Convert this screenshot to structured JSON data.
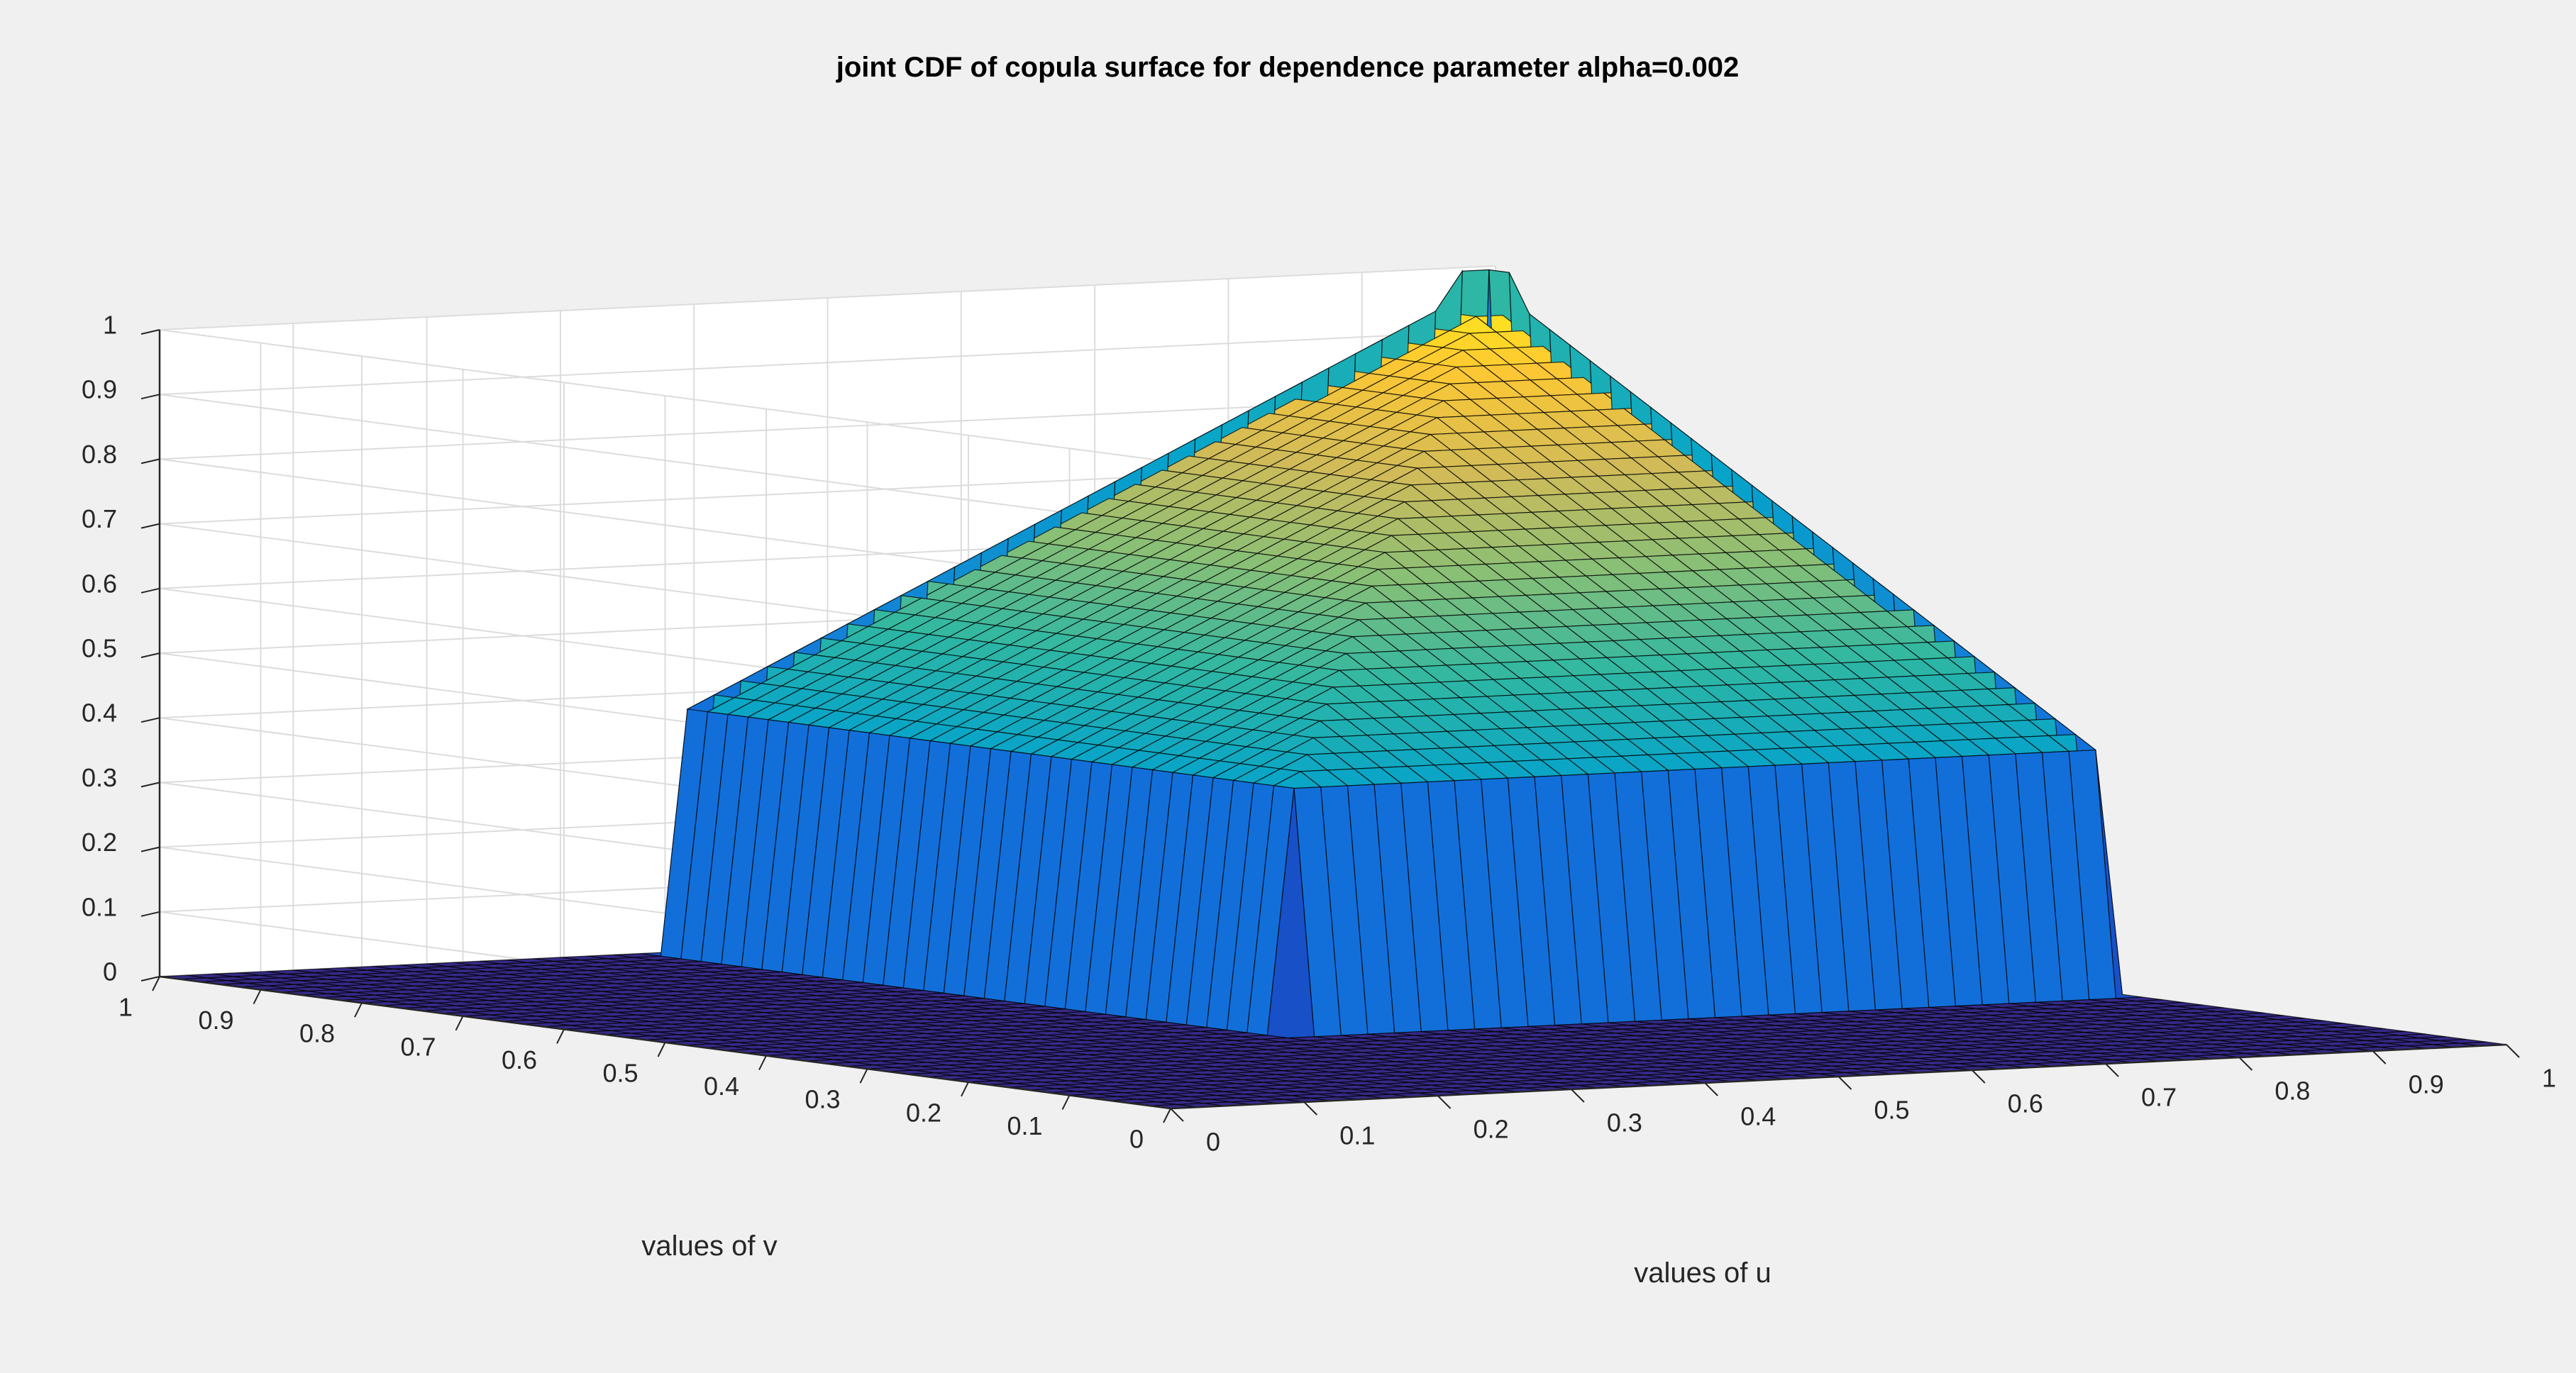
{
  "figure": {
    "background": "#f0f0f0",
    "axes_background": "#ffffff",
    "grid_color": "#dcdcdc",
    "axis_color": "#262626"
  },
  "chart_data": {
    "type": "surface",
    "title": "joint CDF of copula surface for dependence parameter alpha=0.002",
    "xlabel": "values of u",
    "ylabel": "values of v",
    "zlabel": "",
    "xlim": [
      0,
      1
    ],
    "ylim": [
      0,
      1
    ],
    "zlim": [
      0,
      1
    ],
    "x_ticks": [
      "0",
      "0.1",
      "0.2",
      "0.3",
      "0.4",
      "0.5",
      "0.6",
      "0.7",
      "0.8",
      "0.9",
      "1"
    ],
    "y_ticks": [
      "0",
      "0.1",
      "0.2",
      "0.3",
      "0.4",
      "0.5",
      "0.6",
      "0.7",
      "0.8",
      "0.9",
      "1"
    ],
    "z_ticks": [
      "0",
      "0.1",
      "0.2",
      "0.3",
      "0.4",
      "0.5",
      "0.6",
      "0.7",
      "0.8",
      "0.9",
      "1"
    ],
    "grid": true,
    "colormap": "parula",
    "colormap_stops": [
      "#352a87",
      "#0f5cdd",
      "#1481d6",
      "#06a4ca",
      "#2eb7a4",
      "#87bf77",
      "#d1bb59",
      "#fec832",
      "#f9fb0e"
    ],
    "surface": {
      "u_range": [
        0,
        1
      ],
      "v_range": [
        0,
        1
      ],
      "mesh_step": 0.02,
      "support_low": 0.38,
      "support_high": 0.98,
      "peak_low": 0.96,
      "function": "C(u,v) = min(u,v) for u,v in [0.38, 0.98]; 0 outside; 1 on peak patch"
    }
  }
}
